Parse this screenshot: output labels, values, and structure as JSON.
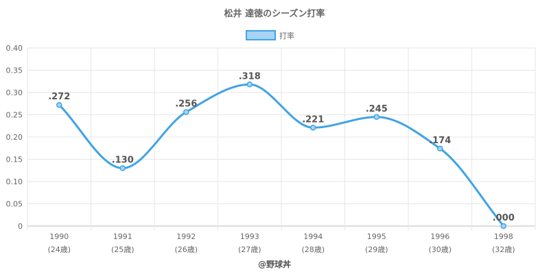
{
  "chart_data": {
    "type": "line",
    "title": "松井 達徳のシーズン打率",
    "categories": [
      "1990",
      "1991",
      "1992",
      "1993",
      "1994",
      "1995",
      "1996",
      "1998"
    ],
    "sublabels": [
      "(24歳)",
      "(25歳)",
      "(26歳)",
      "(27歳)",
      "(28歳)",
      "(29歳)",
      "(30歳)",
      "(32歳)"
    ],
    "series": [
      {
        "name": "打率",
        "values": [
          0.272,
          0.13,
          0.256,
          0.318,
          0.221,
          0.245,
          0.174,
          0.0
        ],
        "labels": [
          ".272",
          ".130",
          ".256",
          ".318",
          ".221",
          ".245",
          ".174",
          ".000"
        ],
        "color": "#3fa3e6",
        "fill": "#a8d4f5"
      }
    ],
    "ylim": [
      0,
      0.4
    ],
    "yticks": [
      0,
      0.05,
      0.1,
      0.15,
      0.2,
      0.25,
      0.3,
      0.35,
      0.4
    ],
    "ytick_labels": [
      "0",
      "0.05",
      "0.10",
      "0.15",
      "0.20",
      "0.25",
      "0.30",
      "0.35",
      "0.40"
    ],
    "grid": true,
    "legend_position": "top-center"
  },
  "credit": "@野球丼"
}
